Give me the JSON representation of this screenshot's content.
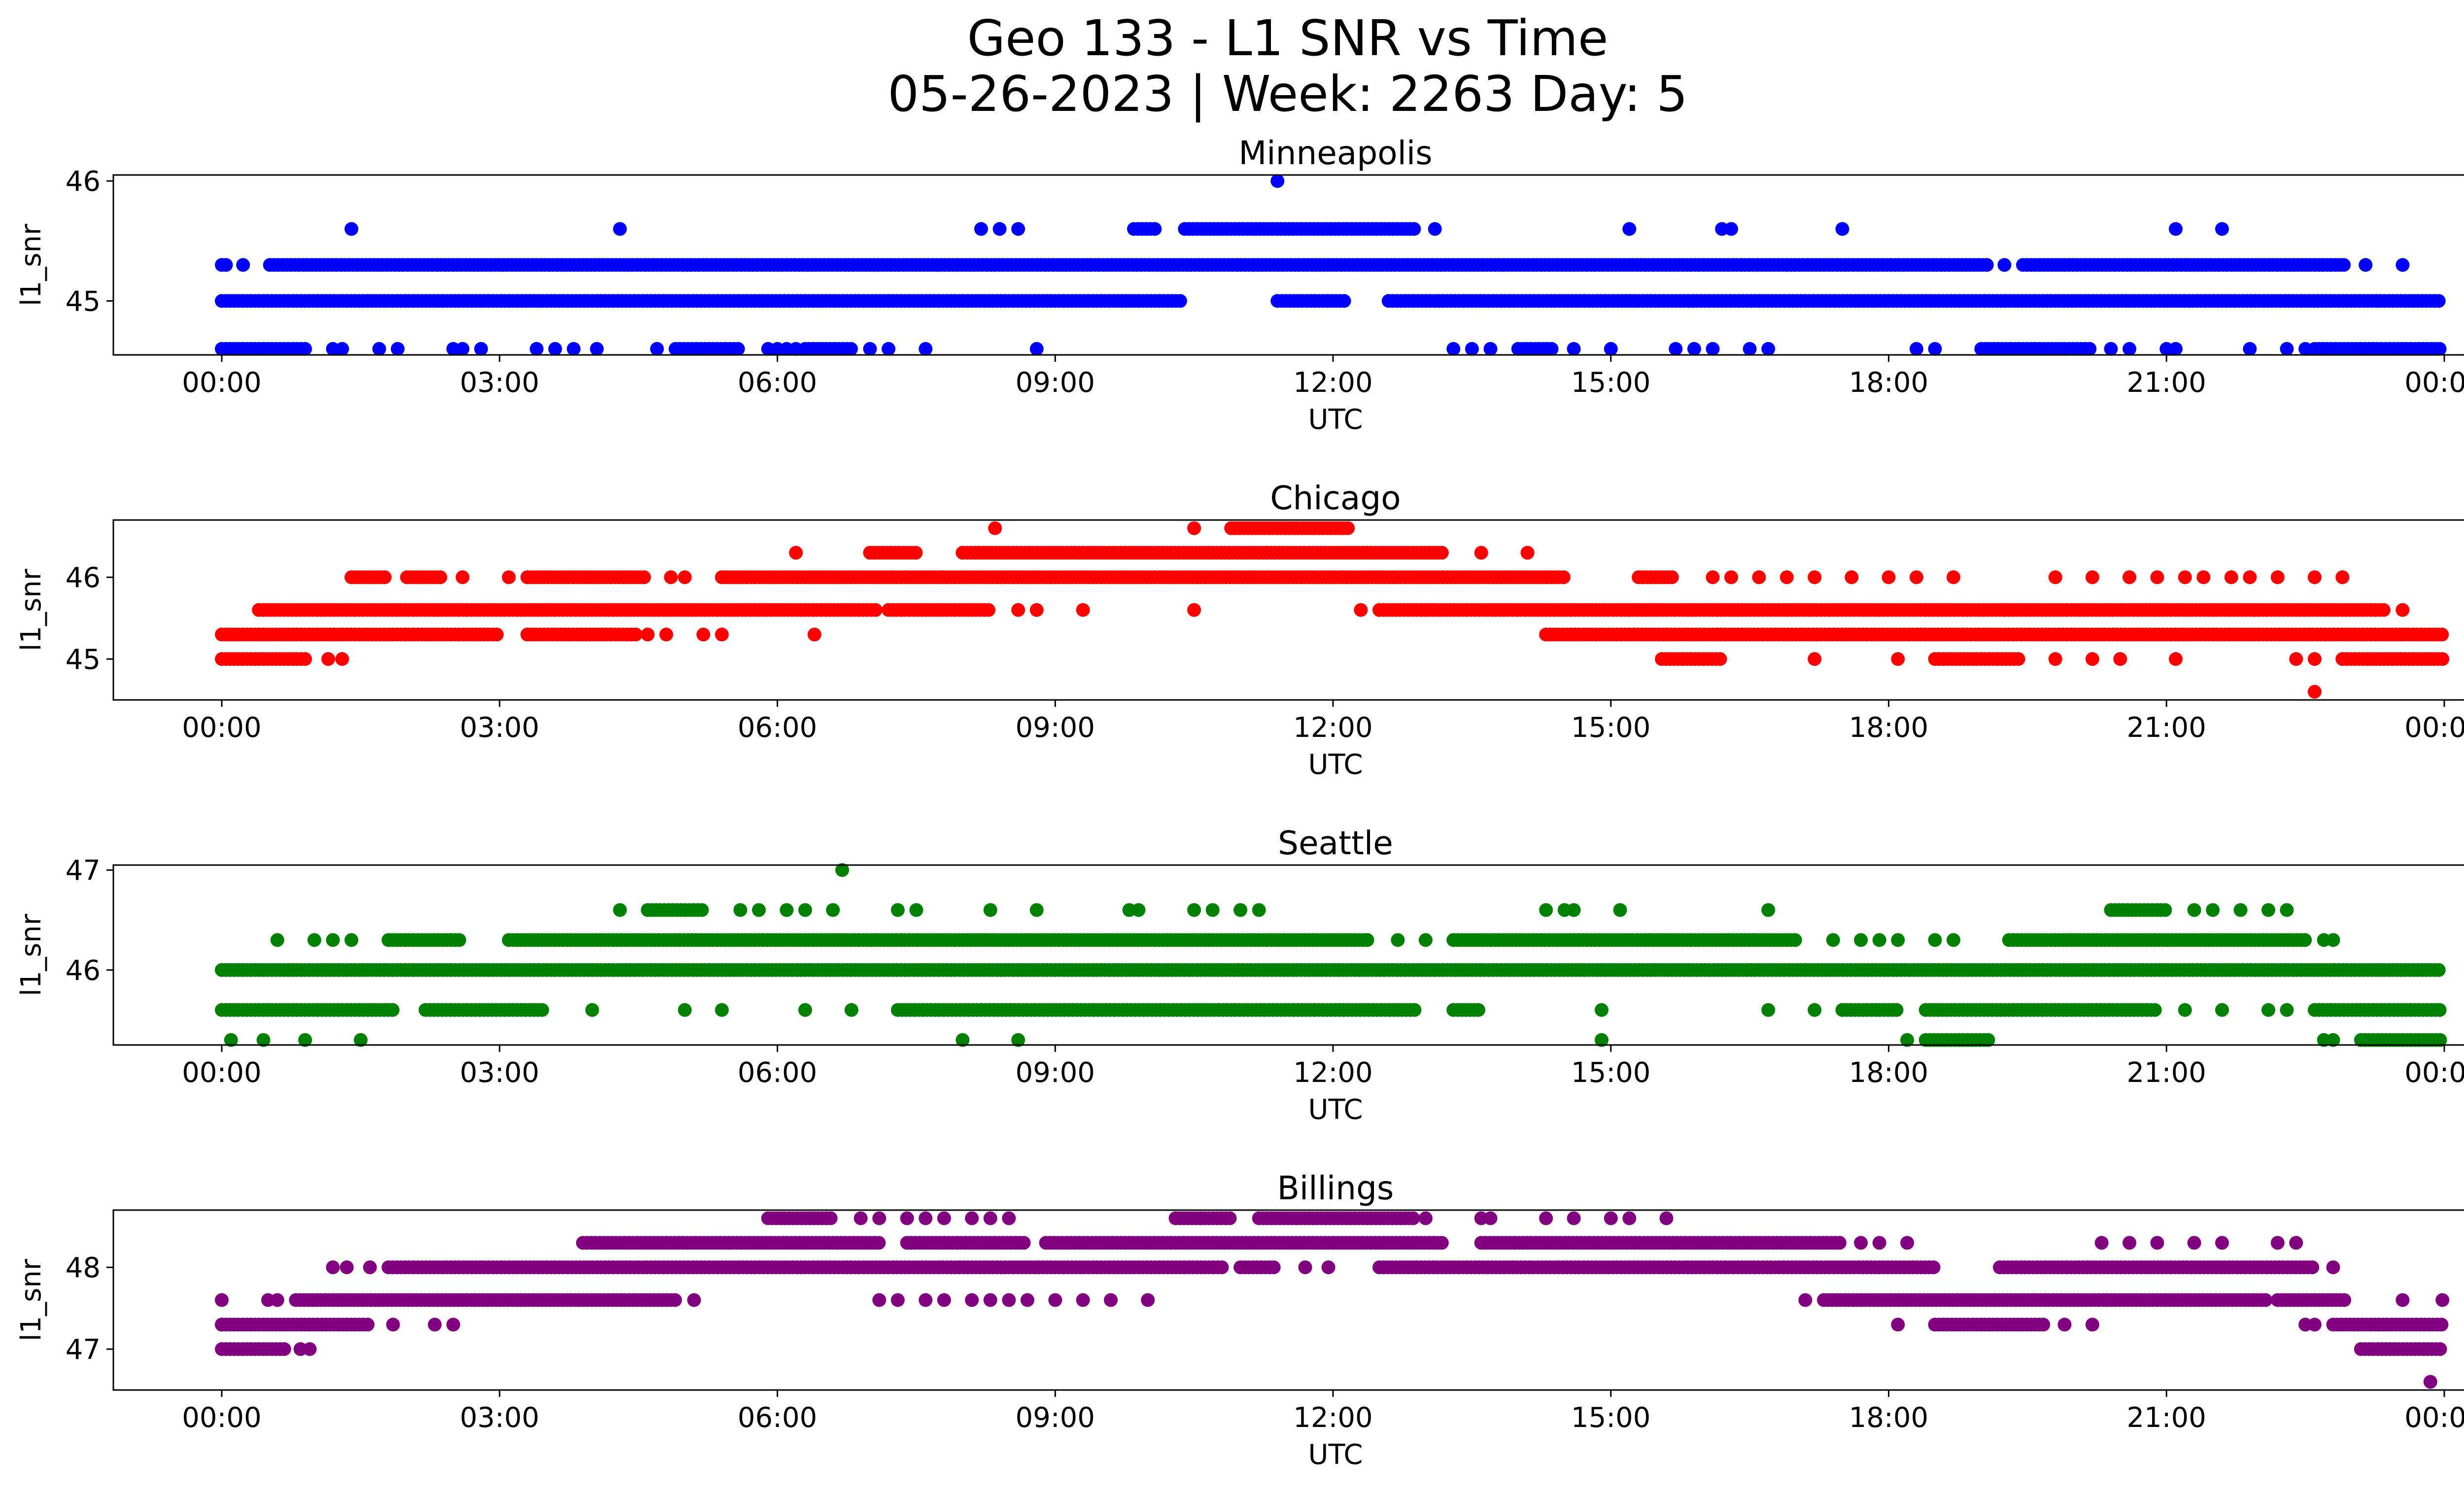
{
  "figure": {
    "title_line1": "Geo 133 - L1 SNR vs Time",
    "title_line2": "05-26-2023 | Week: 2263 Day: 5"
  },
  "chart_data": [
    {
      "type": "scatter",
      "title": "Minneapolis",
      "xlabel": "UTC",
      "ylabel": "l1_snr",
      "color": "#0000ff",
      "xlim": [
        "00:00",
        "24:00"
      ],
      "ylim": [
        44.55,
        46.05
      ],
      "x_ticks": [
        "00:00",
        "03:00",
        "06:00",
        "09:00",
        "12:00",
        "15:00",
        "18:00",
        "21:00",
        "00:00"
      ],
      "y_ticks": [
        45,
        46
      ],
      "bands": [
        {
          "y": 45.0,
          "ranges": [
            [
              0.0,
              10.35
            ],
            [
              11.4,
              12.15
            ],
            [
              12.6,
              23.98
            ]
          ]
        },
        {
          "y": 45.3,
          "ranges": [
            [
              0.0,
              0.05
            ],
            [
              0.52,
              19.1
            ],
            [
              19.45,
              22.95
            ]
          ],
          "points": [
            0.23,
            19.25,
            23.15,
            23.55
          ]
        },
        {
          "y": 44.6,
          "ranges": [
            [
              0.0,
              0.9
            ],
            [
              4.9,
              5.6
            ],
            [
              6.3,
              6.8
            ],
            [
              14.0,
              14.4
            ],
            [
              19.0,
              20.2
            ],
            [
              22.6,
              23.98
            ]
          ],
          "points": [
            1.2,
            1.3,
            1.7,
            1.9,
            2.5,
            2.6,
            2.8,
            3.4,
            3.6,
            3.8,
            4.05,
            4.7,
            5.9,
            6.0,
            6.1,
            6.2,
            7.0,
            7.2,
            7.6,
            8.8,
            13.3,
            13.5,
            13.7,
            14.6,
            15.0,
            15.7,
            15.9,
            16.1,
            16.5,
            16.7,
            18.3,
            18.5,
            20.4,
            20.6,
            21.0,
            21.1,
            21.9,
            22.3,
            22.5
          ]
        },
        {
          "y": 45.6,
          "ranges": [
            [
              10.4,
              12.9
            ],
            [
              9.85,
              10.1
            ]
          ],
          "points": [
            1.4,
            4.3,
            8.2,
            8.4,
            8.6,
            13.1,
            15.2,
            16.2,
            16.3,
            17.5,
            21.1,
            21.6
          ]
        },
        {
          "y": 46.0,
          "points": [
            11.4
          ]
        }
      ]
    },
    {
      "type": "scatter",
      "title": "Chicago",
      "xlabel": "UTC",
      "ylabel": "l1_snr",
      "color": "#ff0000",
      "xlim": [
        "00:00",
        "24:00"
      ],
      "ylim": [
        44.5,
        46.7
      ],
      "x_ticks": [
        "00:00",
        "03:00",
        "06:00",
        "09:00",
        "12:00",
        "15:00",
        "18:00",
        "21:00",
        "00:00"
      ],
      "y_ticks": [
        45,
        46
      ],
      "bands": [
        {
          "y": 45.0,
          "ranges": [
            [
              0.0,
              0.9
            ],
            [
              15.55,
              16.2
            ],
            [
              18.5,
              19.4
            ],
            [
              22.9,
              23.98
            ]
          ],
          "points": [
            1.15,
            1.3,
            17.2,
            18.1,
            19.8,
            20.2,
            20.5,
            21.1,
            22.4,
            22.6
          ]
        },
        {
          "y": 45.3,
          "ranges": [
            [
              0.0,
              3.0
            ],
            [
              3.3,
              4.5
            ],
            [
              14.3,
              23.98
            ]
          ],
          "points": [
            4.6,
            4.8,
            5.2,
            5.4,
            6.4
          ]
        },
        {
          "y": 45.6,
          "ranges": [
            [
              0.4,
              7.1
            ],
            [
              7.2,
              8.3
            ],
            [
              12.5,
              23.35
            ]
          ],
          "points": [
            8.6,
            8.8,
            9.3,
            10.5,
            12.3,
            23.55
          ]
        },
        {
          "y": 46.0,
          "ranges": [
            [
              1.4,
              1.8
            ],
            [
              2.0,
              2.4
            ],
            [
              3.3,
              4.6
            ],
            [
              5.4,
              14.5
            ],
            [
              15.3,
              15.7
            ]
          ],
          "points": [
            2.6,
            3.1,
            4.85,
            5.0,
            16.1,
            16.3,
            16.6,
            16.9,
            17.2,
            17.6,
            18.0,
            18.3,
            18.7,
            19.8,
            20.2,
            20.6,
            20.9,
            21.2,
            21.4,
            21.7,
            21.9,
            22.2,
            22.6,
            22.9
          ]
        },
        {
          "y": 46.3,
          "ranges": [
            [
              7.0,
              7.5
            ],
            [
              8.0,
              13.2
            ]
          ],
          "points": [
            6.2,
            13.6,
            14.1
          ]
        },
        {
          "y": 46.6,
          "ranges": [
            [
              10.9,
              12.2
            ]
          ],
          "points": [
            8.35,
            10.5
          ]
        },
        {
          "y": 44.6,
          "points": [
            22.6
          ]
        }
      ]
    },
    {
      "type": "scatter",
      "title": "Seattle",
      "xlabel": "UTC",
      "ylabel": "l1_snr",
      "color": "#008000",
      "xlim": [
        "00:00",
        "24:00"
      ],
      "ylim": [
        45.25,
        47.05
      ],
      "x_ticks": [
        "00:00",
        "03:00",
        "06:00",
        "09:00",
        "12:00",
        "15:00",
        "18:00",
        "21:00",
        "00:00"
      ],
      "y_ticks": [
        46,
        47
      ],
      "bands": [
        {
          "y": 46.0,
          "ranges": [
            [
              0.0,
              23.98
            ]
          ]
        },
        {
          "y": 45.6,
          "ranges": [
            [
              0.0,
              1.85
            ],
            [
              2.2,
              3.5
            ],
            [
              7.3,
              12.9
            ],
            [
              13.3,
              13.6
            ],
            [
              17.5,
              18.1
            ],
            [
              18.4,
              20.9
            ],
            [
              22.6,
              23.98
            ]
          ],
          "points": [
            4.0,
            5.0,
            5.4,
            6.3,
            6.8,
            14.9,
            16.7,
            17.2,
            21.2,
            21.6,
            22.1,
            22.3
          ]
        },
        {
          "y": 46.3,
          "ranges": [
            [
              1.8,
              2.6
            ],
            [
              3.1,
              12.4
            ],
            [
              13.3,
              17.0
            ],
            [
              19.3,
              22.5
            ]
          ],
          "points": [
            0.6,
            1.0,
            1.2,
            1.4,
            12.7,
            13.0,
            17.4,
            17.7,
            17.9,
            18.1,
            18.5,
            18.7,
            22.7,
            22.8
          ]
        },
        {
          "y": 46.6,
          "ranges": [
            [
              4.6,
              5.2
            ],
            [
              20.4,
              21.0
            ]
          ],
          "points": [
            4.3,
            5.6,
            5.8,
            6.1,
            6.3,
            6.6,
            7.3,
            7.5,
            8.3,
            8.8,
            9.8,
            9.9,
            10.5,
            10.7,
            11.0,
            11.2,
            14.3,
            14.5,
            14.6,
            15.1,
            16.7,
            21.3,
            21.5,
            21.8,
            22.1,
            22.3
          ]
        },
        {
          "y": 45.3,
          "ranges": [
            [
              23.1,
              23.98
            ],
            [
              18.4,
              19.1
            ]
          ],
          "points": [
            0.1,
            0.45,
            0.9,
            1.5,
            8.0,
            8.6,
            14.9,
            18.2,
            22.7,
            22.8
          ]
        },
        {
          "y": 47.0,
          "points": [
            6.7
          ]
        }
      ]
    },
    {
      "type": "scatter",
      "title": "Billings",
      "xlabel": "UTC",
      "ylabel": "l1_snr",
      "color": "#800080",
      "xlim": [
        "00:00",
        "24:00"
      ],
      "ylim": [
        46.5,
        48.7
      ],
      "x_ticks": [
        "00:00",
        "03:00",
        "06:00",
        "09:00",
        "12:00",
        "15:00",
        "18:00",
        "21:00",
        "00:00"
      ],
      "y_ticks": [
        47,
        48
      ],
      "bands": [
        {
          "y": 47.0,
          "ranges": [
            [
              0.0,
              0.7
            ],
            [
              23.1,
              23.98
            ]
          ],
          "points": [
            0.85,
            0.95
          ]
        },
        {
          "y": 47.3,
          "ranges": [
            [
              0.0,
              1.6
            ],
            [
              18.5,
              19.7
            ],
            [
              22.8,
              23.98
            ]
          ],
          "points": [
            0.0,
            1.85,
            2.3,
            2.5,
            18.1,
            19.9,
            20.2,
            22.5,
            22.6
          ]
        },
        {
          "y": 47.6,
          "ranges": [
            [
              0.8,
              4.9
            ],
            [
              17.3,
              22.1
            ],
            [
              22.2,
              22.95
            ]
          ],
          "points": [
            0.0,
            0.5,
            0.6,
            5.1,
            7.1,
            7.3,
            7.6,
            7.8,
            8.1,
            8.3,
            8.5,
            8.7,
            9.0,
            9.3,
            9.6,
            10.0,
            17.1,
            23.55,
            23.98
          ]
        },
        {
          "y": 48.0,
          "ranges": [
            [
              1.8,
              10.8
            ],
            [
              11.0,
              11.4
            ],
            [
              12.5,
              18.5
            ],
            [
              19.2,
              22.6
            ]
          ],
          "points": [
            1.2,
            1.35,
            1.6,
            11.7,
            11.95,
            22.8
          ]
        },
        {
          "y": 48.3,
          "ranges": [
            [
              3.9,
              7.1
            ],
            [
              7.4,
              8.7
            ],
            [
              8.9,
              13.2
            ],
            [
              13.6,
              17.5
            ]
          ],
          "points": [
            17.7,
            17.9,
            18.2,
            20.3,
            20.6,
            20.9,
            21.3,
            21.6,
            22.2,
            22.4
          ]
        },
        {
          "y": 48.6,
          "ranges": [
            [
              5.9,
              6.6
            ],
            [
              10.3,
              10.9
            ],
            [
              11.2,
              12.9
            ]
          ],
          "points": [
            6.9,
            7.1,
            7.4,
            7.6,
            7.8,
            8.1,
            8.3,
            8.5,
            13.0,
            13.6,
            13.7,
            14.3,
            14.6,
            15.0,
            15.2,
            15.6
          ]
        },
        {
          "y": 46.6,
          "points": [
            23.85
          ]
        }
      ]
    }
  ]
}
